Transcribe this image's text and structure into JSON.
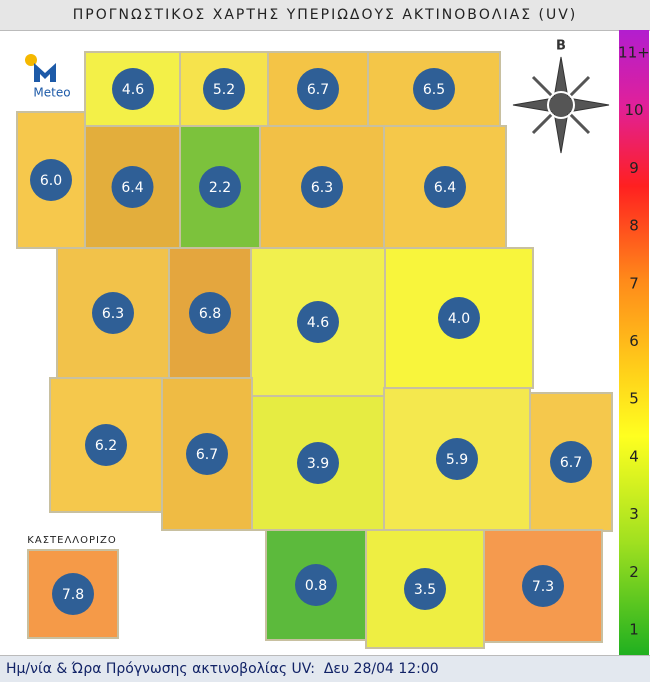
{
  "header": {
    "title": "ΠΡΟΓΝΩΣΤΙΚΟΣ ΧΑΡΤΗΣ ΥΠΕΡΙΩΔΟΥΣ ΑΚΤΙΝΟΒΟΛΙΑΣ (UV)"
  },
  "logo": {
    "text": "Meteo"
  },
  "compass": {
    "label": "Β"
  },
  "regions": [
    "4.6",
    "5.2",
    "6.7",
    "6.5",
    "6.0",
    "6.4",
    "2.2",
    "6.3",
    "6.4",
    "6.3",
    "6.8",
    "4.6",
    "4.0",
    "6.2",
    "6.7",
    "3.9",
    "5.9",
    "6.7",
    "0.8",
    "3.5",
    "7.3",
    "7.8"
  ],
  "inset": {
    "label": "ΚΑΣΤΕΛΛΟΡΙΖΟ"
  },
  "scale": [
    "11+",
    "10",
    "9",
    "8",
    "7",
    "6",
    "5",
    "4",
    "3",
    "2",
    "1"
  ],
  "footer": {
    "label": "Ημ/νία & Ώρα Πρόγνωσης ακτινοβολίας UV:",
    "date": "Δευ 28/04 12:00"
  }
}
